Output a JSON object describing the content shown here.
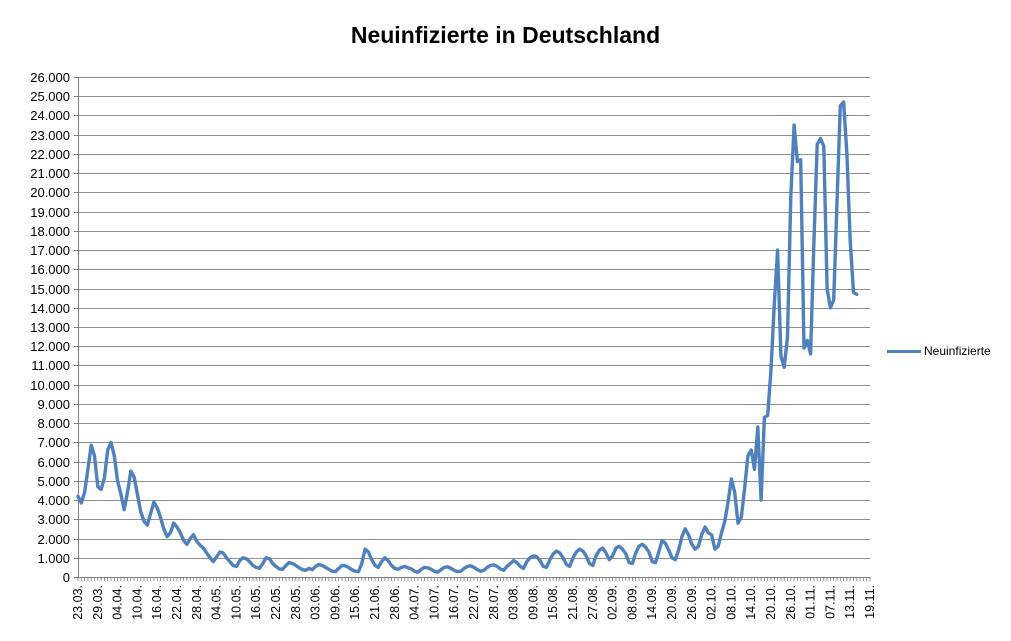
{
  "title": "Neuinfizierte in Deutschland",
  "legend": {
    "label": "Neuinfizierte"
  },
  "colors": {
    "series": "#4F81BD",
    "grid": "#8E8E8E",
    "axis": "#7F7F7F",
    "text": "#000000",
    "background": "#FFFFFF"
  },
  "chart_data": {
    "type": "line",
    "title": "Neuinfizierte in Deutschland",
    "xlabel": "",
    "ylabel": "",
    "grid": true,
    "legend_position": "right",
    "y_min": 0,
    "y_max": 26000,
    "y_step": 1000,
    "y_tick_labels": [
      "0",
      "1.000",
      "2.000",
      "3.000",
      "4.000",
      "5.000",
      "6.000",
      "7.000",
      "8.000",
      "9.000",
      "10.000",
      "11.000",
      "12.000",
      "13.000",
      "14.000",
      "15.000",
      "16.000",
      "17.000",
      "18.000",
      "19.000",
      "20.000",
      "21.000",
      "22.000",
      "23.000",
      "24.000",
      "25.000",
      "26.000"
    ],
    "n_categories": 241,
    "x_label_every": 6,
    "x_tick_labels": [
      "23.03.",
      "29.03.",
      "04.04.",
      "10.04.",
      "16.04.",
      "22.04.",
      "28.04.",
      "04.05.",
      "10.05.",
      "16.05.",
      "22.05.",
      "28.05.",
      "03.06.",
      "09.06.",
      "15.06.",
      "21.06.",
      "28.06.",
      "04.07.",
      "10.07.",
      "16.07.",
      "22.07.",
      "28.07.",
      "03.08.",
      "09.08.",
      "15.08.",
      "21.08.",
      "27.08.",
      "02.09.",
      "08.09.",
      "14.09.",
      "20.09.",
      "26.09.",
      "02.10.",
      "08.10.",
      "14.10.",
      "20.10.",
      "26.10.",
      "01.11.",
      "07.11.",
      "13.11.",
      "19.11."
    ],
    "series": [
      {
        "name": "Neuinfizierte",
        "color": "#4F81BD",
        "values": [
          4200,
          3850,
          4400,
          5600,
          6850,
          6300,
          4700,
          4550,
          5150,
          6600,
          7000,
          6300,
          5000,
          4300,
          3500,
          4400,
          5500,
          5200,
          4300,
          3400,
          2900,
          2700,
          3300,
          3900,
          3600,
          3100,
          2500,
          2100,
          2300,
          2800,
          2600,
          2300,
          1900,
          1700,
          2000,
          2200,
          1850,
          1650,
          1500,
          1250,
          1000,
          800,
          1050,
          1300,
          1250,
          1000,
          800,
          600,
          550,
          850,
          1000,
          950,
          800,
          600,
          500,
          450,
          700,
          1000,
          950,
          700,
          550,
          420,
          400,
          600,
          750,
          700,
          600,
          480,
          380,
          350,
          450,
          380,
          550,
          650,
          600,
          500,
          400,
          300,
          280,
          450,
          600,
          580,
          500,
          380,
          300,
          280,
          700,
          1450,
          1300,
          900,
          600,
          500,
          800,
          1000,
          850,
          600,
          450,
          400,
          500,
          550,
          480,
          420,
          300,
          250,
          400,
          500,
          480,
          400,
          300,
          250,
          380,
          500,
          530,
          450,
          350,
          280,
          300,
          450,
          550,
          580,
          500,
          380,
          300,
          350,
          500,
          600,
          630,
          550,
          420,
          350,
          550,
          700,
          850,
          750,
          550,
          450,
          800,
          1000,
          1100,
          1050,
          850,
          550,
          500,
          900,
          1200,
          1350,
          1250,
          1000,
          650,
          550,
          1000,
          1300,
          1450,
          1350,
          1100,
          700,
          600,
          1100,
          1400,
          1500,
          1250,
          900,
          1100,
          1500,
          1600,
          1450,
          1200,
          750,
          700,
          1250,
          1600,
          1700,
          1550,
          1300,
          800,
          750,
          1300,
          1900,
          1750,
          1400,
          1000,
          900,
          1400,
          2100,
          2500,
          2200,
          1700,
          1450,
          1600,
          2200,
          2600,
          2300,
          2200,
          1450,
          1600,
          2300,
          2900,
          3900,
          5100,
          4400,
          2800,
          3100,
          4600,
          6300,
          6600,
          5600,
          7800,
          4000,
          8300,
          8400,
          10800,
          14200,
          17000,
          11500,
          10900,
          12500,
          19800,
          23500,
          21600,
          21700,
          11900,
          12300,
          11600,
          17400,
          22500,
          22800,
          22400,
          15000,
          14000,
          14400,
          19500,
          24500,
          24700,
          22000,
          17500,
          14800,
          14700,
          null,
          null,
          null,
          null
        ]
      }
    ]
  }
}
